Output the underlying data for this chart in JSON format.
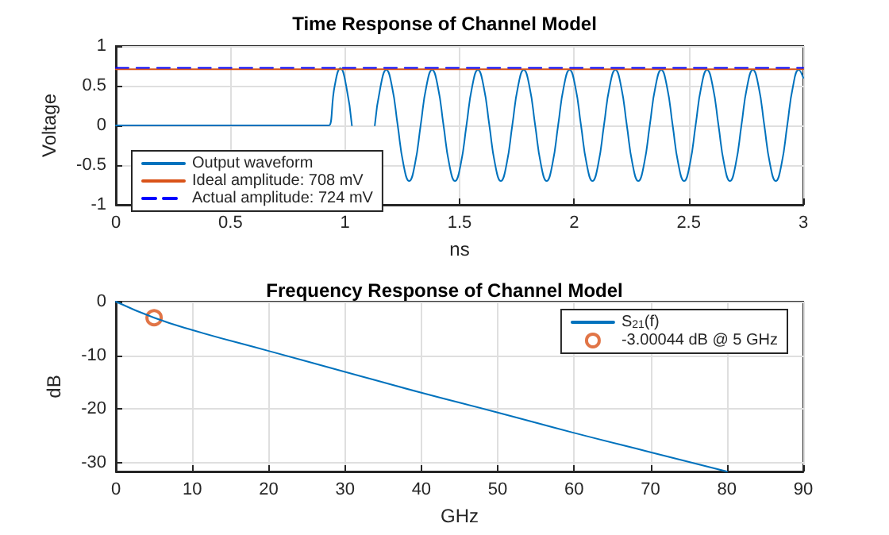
{
  "chart_data": [
    {
      "type": "line",
      "title": "Time Response of Channel Model",
      "xlabel": "ns",
      "ylabel": "Voltage",
      "xlim": [
        0,
        3
      ],
      "ylim": [
        -1,
        1
      ],
      "xticks": [
        0,
        0.5,
        1,
        1.5,
        2,
        2.5,
        3
      ],
      "yticks": [
        -1,
        -0.5,
        0,
        0.5,
        1
      ],
      "grid": true,
      "legend": "bottom left",
      "series": [
        {
          "name": "Output waveform",
          "color": "#0072bd",
          "marker": "none",
          "line_style": "solid",
          "x": [
            0,
            0.92,
            0.93,
            0.955,
            0.98,
            1.005,
            1.03,
            1.055,
            1.08,
            1.105,
            1.13,
            1.155,
            1.18,
            1.205,
            1.23,
            1.255,
            1.28,
            1.305,
            1.33,
            1.355,
            1.38,
            1.405,
            1.43,
            1.455,
            1.48,
            1.505,
            1.53,
            1.555,
            1.58,
            1.605,
            1.63,
            1.655,
            1.68,
            1.705,
            1.73,
            1.755,
            1.78,
            1.805,
            1.83,
            1.855,
            1.88,
            1.905,
            1.93,
            1.955,
            1.98,
            2.005,
            2.03,
            2.055,
            2.08,
            2.105,
            2.13,
            2.155,
            2.18,
            2.205,
            2.23,
            2.255,
            2.28,
            2.305,
            2.33,
            2.355,
            2.38,
            2.405,
            2.43,
            2.455,
            2.48,
            2.505,
            2.53,
            2.555,
            2.58,
            2.605,
            2.63,
            2.655,
            2.68,
            2.705,
            2.73,
            2.755,
            2.78,
            2.805,
            2.83,
            2.855,
            2.88,
            2.905,
            2.93,
            2.955,
            2.98,
            3.0
          ],
          "values": [
            0,
            0,
            0,
            0.5,
            0.72,
            0.5,
            0,
            null,
            null,
            null,
            0,
            0.49,
            0.7,
            0.49,
            0,
            -0.49,
            -0.7,
            -0.49,
            0,
            0.49,
            0.7,
            0.49,
            0,
            -0.49,
            -0.7,
            -0.49,
            0,
            0.49,
            0.7,
            0.49,
            0,
            -0.49,
            -0.7,
            -0.49,
            0,
            0.49,
            0.7,
            0.49,
            0,
            -0.49,
            -0.7,
            -0.49,
            0,
            0.49,
            0.7,
            0.49,
            0,
            -0.49,
            -0.7,
            -0.49,
            0,
            0.49,
            0.7,
            0.49,
            0,
            -0.49,
            -0.7,
            -0.49,
            0,
            0.49,
            0.7,
            0.49,
            0,
            -0.49,
            -0.7,
            -0.49,
            0,
            0.49,
            0.7,
            0.49,
            0,
            -0.49,
            -0.7,
            -0.49,
            0,
            0.49,
            0.7,
            0.49,
            0,
            -0.49,
            -0.7,
            -0.49,
            0,
            0.49,
            0.7,
            0.6
          ]
        },
        {
          "name": "Ideal amplitude: 708 mV",
          "color": "#d95319",
          "marker": "none",
          "line_style": "solid",
          "x": [
            0,
            3
          ],
          "values": [
            0.708,
            0.708
          ]
        },
        {
          "name": "Actual amplitude: 724 mV",
          "color": "#0000ff",
          "marker": "none",
          "line_style": "dashed",
          "x": [
            0,
            3
          ],
          "values": [
            0.724,
            0.724
          ]
        }
      ]
    },
    {
      "type": "line",
      "title": "Frequency Response of Channel Model",
      "xlabel": "GHz",
      "ylabel": "dB",
      "xlim": [
        0,
        90
      ],
      "ylim": [
        -31.7,
        0
      ],
      "xticks": [
        0,
        10,
        20,
        30,
        40,
        50,
        60,
        70,
        80,
        90
      ],
      "yticks": [
        -30,
        -20,
        -10,
        0
      ],
      "grid": true,
      "legend": "top right",
      "series": [
        {
          "name": "S$_{21}$(f)",
          "color": "#0072bd",
          "marker": "none",
          "line_style": "solid",
          "x": [
            0,
            5,
            10,
            20,
            30,
            40,
            50,
            60,
            70,
            80
          ],
          "values": [
            0,
            -3.0,
            -5.3,
            -9.2,
            -13.1,
            -17,
            -20.7,
            -24.5,
            -28.1,
            -31.7
          ]
        },
        {
          "name": "-3.00044 dB @ 5 GHz",
          "type": "scatter",
          "color": "#d95319",
          "marker": "circle",
          "x": [
            5
          ],
          "values": [
            -3.00044
          ]
        }
      ]
    }
  ]
}
